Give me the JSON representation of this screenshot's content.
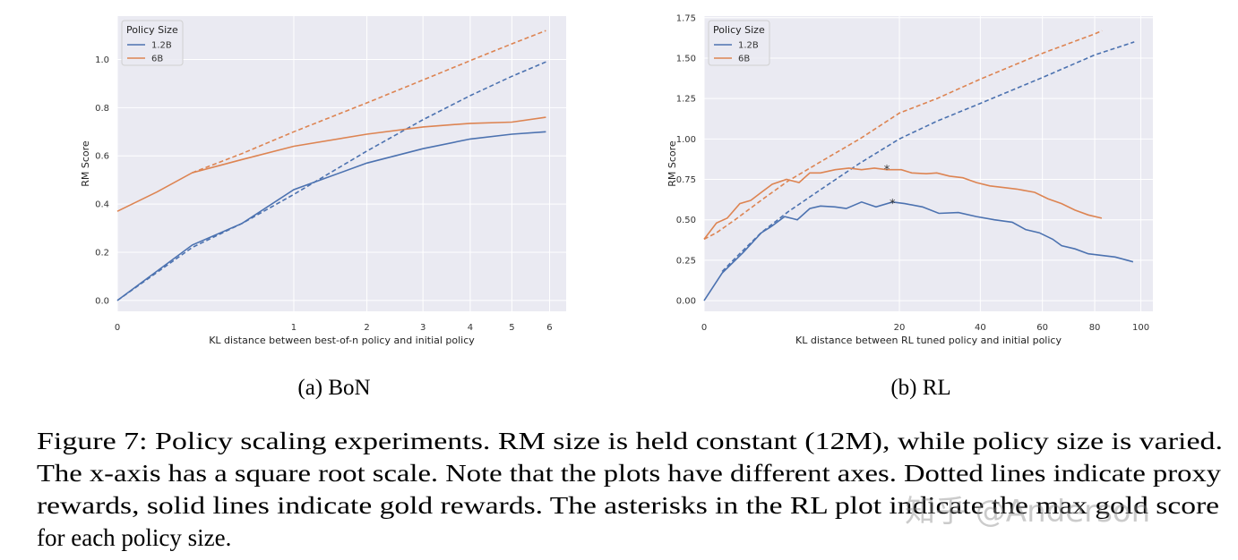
{
  "chart_data": [
    {
      "type": "line",
      "subcaption": "(a) BoN",
      "xlabel": "KL distance between best-of-n policy and initial policy",
      "ylabel": "RM Score",
      "xscale": "sqrt",
      "xlim": [
        0,
        6.47
      ],
      "ylim": [
        -0.045,
        1.18
      ],
      "xticks": [
        0,
        1,
        2,
        3,
        4,
        5,
        6
      ],
      "yticks": [
        {
          "value": 0,
          "label": "0.0"
        },
        0.2,
        0.4,
        0.6,
        0.8,
        {
          "value": 1,
          "label": "1.0"
        }
      ],
      "grid": true,
      "legend_title": "Policy Size",
      "legend_loc": "upper left",
      "series": [
        {
          "name": "1.2B",
          "color": "#4c72b0",
          "x": [
            0,
            0.18,
            0.5,
            1,
            2,
            3,
            4,
            5,
            5.9
          ],
          "values": [
            0,
            0.23,
            0.32,
            0.46,
            0.57,
            0.63,
            0.67,
            0.69,
            0.7
          ],
          "proxy_x": [
            0,
            0.18,
            0.5,
            1,
            2,
            3,
            4,
            5,
            5.9
          ],
          "proxy_values": [
            0,
            0.22,
            0.32,
            0.44,
            0.62,
            0.75,
            0.85,
            0.93,
            0.99
          ]
        },
        {
          "name": "6B",
          "color": "#dd8452",
          "x": [
            0,
            0.05,
            0.18,
            0.5,
            1,
            2,
            3,
            4,
            5,
            5.9
          ],
          "values": [
            0.37,
            0.45,
            0.53,
            0.585,
            0.64,
            0.69,
            0.72,
            0.735,
            0.74,
            0.76
          ],
          "proxy_x": [
            0.18,
            0.5,
            1,
            2,
            3,
            4,
            5,
            5.9
          ],
          "proxy_values": [
            0.53,
            0.61,
            0.7,
            0.82,
            0.915,
            0.995,
            1.065,
            1.12
          ]
        }
      ]
    },
    {
      "type": "line",
      "subcaption": "(b) RL",
      "xlabel": "KL distance between RL tuned policy and initial policy",
      "ylabel": "RM Score",
      "xscale": "sqrt",
      "xlim": [
        0,
        105.6
      ],
      "ylim": [
        -0.066,
        1.76
      ],
      "xticks": [
        0,
        20,
        40,
        60,
        80,
        100
      ],
      "yticks": [
        {
          "value": 0,
          "label": "0.00"
        },
        {
          "value": 0.25,
          "label": "0.25"
        },
        {
          "value": 0.5,
          "label": "0.50"
        },
        {
          "value": 0.75,
          "label": "0.75"
        },
        {
          "value": 1,
          "label": "1.00"
        },
        {
          "value": 1.25,
          "label": "1.25"
        },
        {
          "value": 1.5,
          "label": "1.50"
        },
        {
          "value": 1.75,
          "label": "1.75"
        }
      ],
      "grid": true,
      "legend_title": "Policy Size",
      "legend_loc": "upper left",
      "series": [
        {
          "name": "1.2B",
          "color": "#4c72b0",
          "x": [
            0,
            0.17,
            0.81,
            1.72,
            2.4,
            3.4,
            4.55,
            5.86,
            7.1,
            9,
            10.6,
            13,
            15.5,
            18.6,
            21.1,
            25,
            28.9,
            33.9,
            38.9,
            44.2,
            49.8,
            54.2,
            58.9,
            63.7,
            67,
            72.1,
            77.4,
            88.6,
            96.5
          ],
          "values": [
            0,
            0.17,
            0.3,
            0.42,
            0.46,
            0.52,
            0.5,
            0.57,
            0.585,
            0.58,
            0.57,
            0.61,
            0.58,
            0.61,
            0.6,
            0.58,
            0.54,
            0.545,
            0.52,
            0.5,
            0.485,
            0.44,
            0.42,
            0.38,
            0.34,
            0.32,
            0.29,
            0.27,
            0.24
          ],
          "proxy_x": [
            0.17,
            0.6,
            1.7,
            3.7,
            7.5,
            12.7,
            20,
            28.4,
            40,
            60,
            80,
            97
          ],
          "proxy_values": [
            0.18,
            0.28,
            0.42,
            0.55,
            0.7,
            0.85,
            1.0,
            1.11,
            1.22,
            1.38,
            1.52,
            1.6
          ],
          "max_x": 18.6,
          "max_value": 0.61
        },
        {
          "name": "6B",
          "color": "#dd8452",
          "x": [
            0,
            0.08,
            0.28,
            0.67,
            1.14,
            1.72,
            2.43,
            3.56,
            4.73,
            5.86,
            7.1,
            9,
            11,
            13,
            15.2,
            17.5,
            20.4,
            22.6,
            25.9,
            28.4,
            31.6,
            35.1,
            38.9,
            42.8,
            46.9,
            51.3,
            57.3,
            62,
            67,
            72.1,
            77.4,
            82.9
          ],
          "values": [
            0.38,
            0.48,
            0.51,
            0.6,
            0.62,
            0.67,
            0.72,
            0.75,
            0.73,
            0.79,
            0.79,
            0.81,
            0.82,
            0.81,
            0.82,
            0.81,
            0.81,
            0.79,
            0.785,
            0.79,
            0.77,
            0.76,
            0.73,
            0.71,
            0.7,
            0.69,
            0.67,
            0.63,
            0.6,
            0.56,
            0.53,
            0.51
          ],
          "proxy_x": [
            0,
            0.08,
            0.5,
            1.7,
            3.7,
            7.5,
            12.7,
            20,
            28.4,
            40,
            60,
            80,
            83
          ],
          "proxy_values": [
            0.38,
            0.42,
            0.5,
            0.62,
            0.74,
            0.87,
            1.0,
            1.16,
            1.25,
            1.37,
            1.53,
            1.65,
            1.67
          ],
          "max_x": 17.5,
          "max_value": 0.82
        }
      ]
    }
  ],
  "caption_lines": [
    "Figure 7: Policy scaling experiments. RM size is held constant (12M), while policy size is varied.",
    "The x-axis has a square root scale. Note that the plots have different axes. Dotted lines indicate proxy",
    "rewards, solid lines indicate gold rewards. The asterisks in the RL plot indicate the max gold score",
    "for each policy size."
  ],
  "watermark": "知乎 @Anderson"
}
